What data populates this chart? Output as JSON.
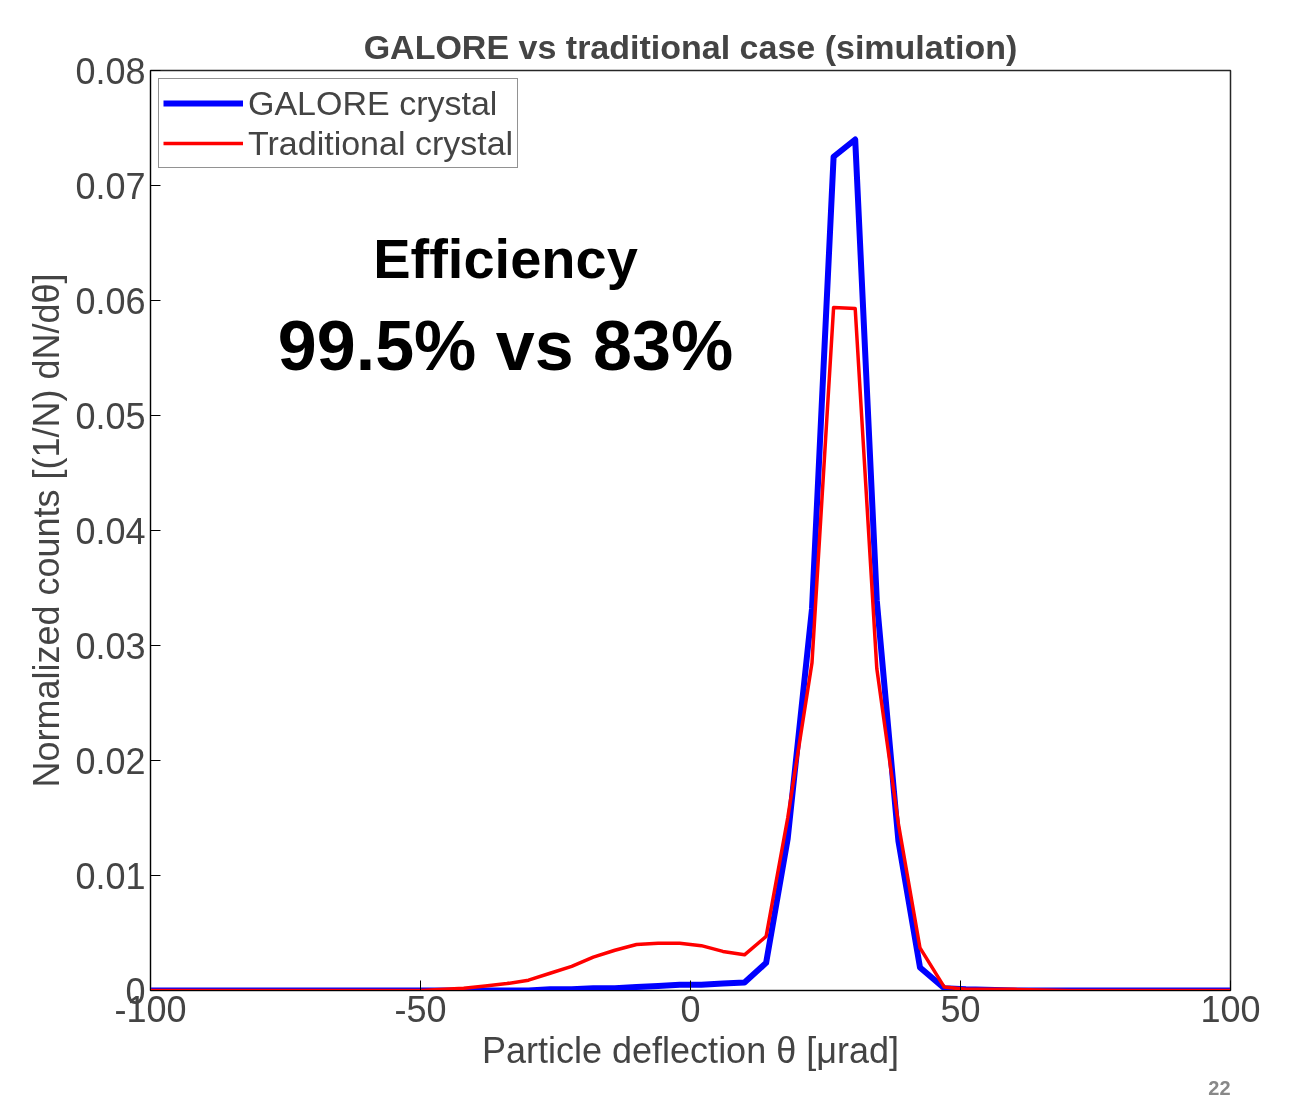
{
  "chart_data": {
    "type": "line",
    "title": "GALORE vs traditional case (simulation)",
    "xlabel": "Particle deflection θ [μrad]",
    "ylabel": "Normalized counts [(1/N) dN/dθ]",
    "x": [
      -100,
      -90,
      -80,
      -70,
      -60,
      -50,
      -42,
      -38,
      -34,
      -30,
      -26,
      -22,
      -18,
      -14,
      -10,
      -6,
      -2,
      2,
      6,
      10,
      14,
      18,
      22.5,
      26.5,
      30.5,
      34.5,
      38.5,
      42.5,
      47,
      51,
      60,
      70,
      80,
      90,
      100
    ],
    "series": [
      {
        "name": "GALORE crystal",
        "color": "#0000ff",
        "values": [
          0,
          0,
          0,
          0,
          0,
          0,
          0,
          0,
          0,
          0,
          0.0001,
          0.0001,
          0.0002,
          0.0002,
          0.0003,
          0.0004,
          0.0005,
          0.0005,
          0.0006,
          0.0007,
          0.0024,
          0.0132,
          0.0332,
          0.0725,
          0.074,
          0.0339,
          0.013,
          0.002,
          0.0002,
          0.0001,
          0,
          0,
          0,
          0,
          0
        ]
      },
      {
        "name": "Traditional crystal",
        "color": "#ff0000",
        "values": [
          0,
          0,
          0,
          0,
          0,
          0,
          0.0002,
          0.0004,
          0.0006,
          0.0009,
          0.0015,
          0.0021,
          0.0029,
          0.0035,
          0.004,
          0.0041,
          0.0041,
          0.0039,
          0.0034,
          0.0031,
          0.0047,
          0.015,
          0.0285,
          0.0594,
          0.0593,
          0.028,
          0.0145,
          0.0037,
          0.0003,
          0.0001,
          0.0001,
          0,
          0,
          0,
          0
        ]
      }
    ],
    "xlim": [
      -100,
      100
    ],
    "xticks": [
      -100,
      -50,
      0,
      50,
      100
    ],
    "ylim": [
      0,
      0.08
    ],
    "yticks": [
      0,
      0.01,
      0.02,
      0.03,
      0.04,
      0.05,
      0.06,
      0.07,
      0.08
    ],
    "grid": false,
    "legend": "top left",
    "marker": "none",
    "line_style": "solid",
    "annotations": [
      "Efficiency",
      "99.5% vs 83%",
      "22"
    ]
  }
}
